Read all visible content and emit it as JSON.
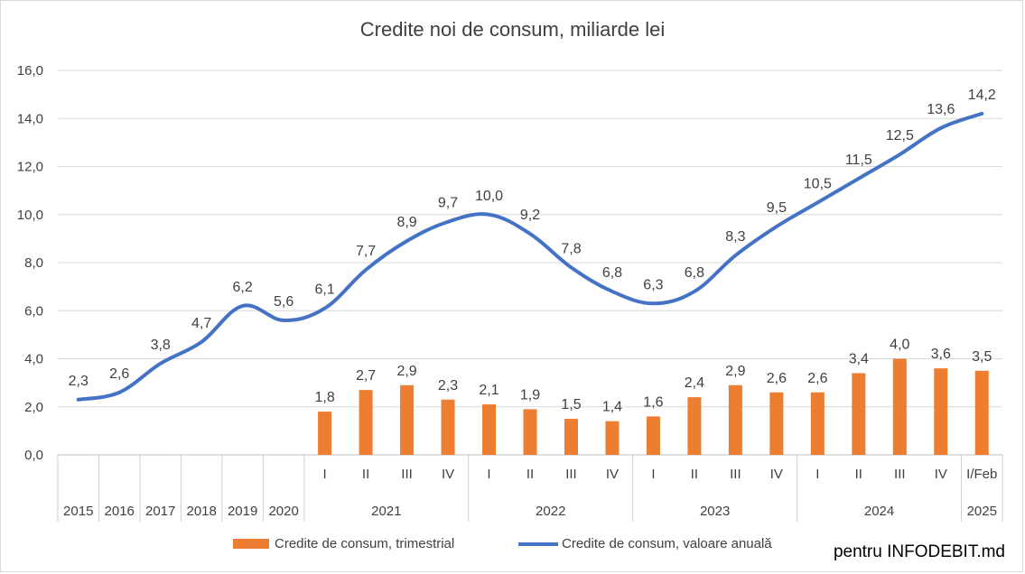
{
  "chart_data": {
    "type": "bar+line",
    "title": "Credite noi de consum, miliarde lei",
    "ylim": [
      0,
      16
    ],
    "y_ticks": [
      "0,0",
      "2,0",
      "4,0",
      "6,0",
      "8,0",
      "10,0",
      "12,0",
      "14,0",
      "16,0"
    ],
    "categories": [
      {
        "label": "",
        "year": "2015"
      },
      {
        "label": "",
        "year": "2016"
      },
      {
        "label": "",
        "year": "2017"
      },
      {
        "label": "",
        "year": "2018"
      },
      {
        "label": "",
        "year": "2019"
      },
      {
        "label": "",
        "year": "2020"
      },
      {
        "label": "I",
        "year": "2021"
      },
      {
        "label": "II",
        "year": "2021"
      },
      {
        "label": "III",
        "year": "2021"
      },
      {
        "label": "IV",
        "year": "2021"
      },
      {
        "label": "I",
        "year": "2022"
      },
      {
        "label": "II",
        "year": "2022"
      },
      {
        "label": "III",
        "year": "2022"
      },
      {
        "label": "IV",
        "year": "2022"
      },
      {
        "label": "I",
        "year": "2023"
      },
      {
        "label": "II",
        "year": "2023"
      },
      {
        "label": "III",
        "year": "2023"
      },
      {
        "label": "IV",
        "year": "2023"
      },
      {
        "label": "I",
        "year": "2024"
      },
      {
        "label": "II",
        "year": "2024"
      },
      {
        "label": "III",
        "year": "2024"
      },
      {
        "label": "IV",
        "year": "2024"
      },
      {
        "label": "I/Feb",
        "year": "2025"
      }
    ],
    "year_groups": [
      {
        "year": "2015",
        "start": 0,
        "end": 0
      },
      {
        "year": "2016",
        "start": 1,
        "end": 1
      },
      {
        "year": "2017",
        "start": 2,
        "end": 2
      },
      {
        "year": "2018",
        "start": 3,
        "end": 3
      },
      {
        "year": "2019",
        "start": 4,
        "end": 4
      },
      {
        "year": "2020",
        "start": 5,
        "end": 5
      },
      {
        "year": "2021",
        "start": 6,
        "end": 9
      },
      {
        "year": "2022",
        "start": 10,
        "end": 13
      },
      {
        "year": "2023",
        "start": 14,
        "end": 17
      },
      {
        "year": "2024",
        "start": 18,
        "end": 21
      },
      {
        "year": "2025",
        "start": 22,
        "end": 22
      }
    ],
    "series": [
      {
        "name": "Credite de consum, trimestrial",
        "type": "bar",
        "color": "#ed7d31",
        "values": [
          null,
          null,
          null,
          null,
          null,
          null,
          1.8,
          2.7,
          2.9,
          2.3,
          2.1,
          1.9,
          1.5,
          1.4,
          1.6,
          2.4,
          2.9,
          2.6,
          2.6,
          3.4,
          4.0,
          3.6,
          3.5
        ],
        "labels": [
          null,
          null,
          null,
          null,
          null,
          null,
          "1,8",
          "2,7",
          "2,9",
          "2,3",
          "2,1",
          "1,9",
          "1,5",
          "1,4",
          "1,6",
          "2,4",
          "2,9",
          "2,6",
          "2,6",
          "3,4",
          "4,0",
          "3,6",
          "3,5"
        ]
      },
      {
        "name": "Credite de consum, valoare anuală",
        "type": "line",
        "color": "#4472c4",
        "values": [
          2.3,
          2.6,
          3.8,
          4.7,
          6.2,
          5.6,
          6.1,
          7.7,
          8.9,
          9.7,
          10.0,
          9.2,
          7.8,
          6.8,
          6.3,
          6.8,
          8.3,
          9.5,
          10.5,
          11.5,
          12.5,
          13.6,
          14.2
        ],
        "labels": [
          "2,3",
          "2,6",
          "3,8",
          "4,7",
          "6,2",
          "5,6",
          "6,1",
          "7,7",
          "8,9",
          "9,7",
          "10,0",
          "9,2",
          "7,8",
          "6,8",
          "6,3",
          "6,8",
          "8,3",
          "9,5",
          "10,5",
          "11,5",
          "12,5",
          "13,6",
          "14,2"
        ]
      }
    ],
    "legend_position": "bottom"
  },
  "credit": "pentru INFODEBIT.md"
}
